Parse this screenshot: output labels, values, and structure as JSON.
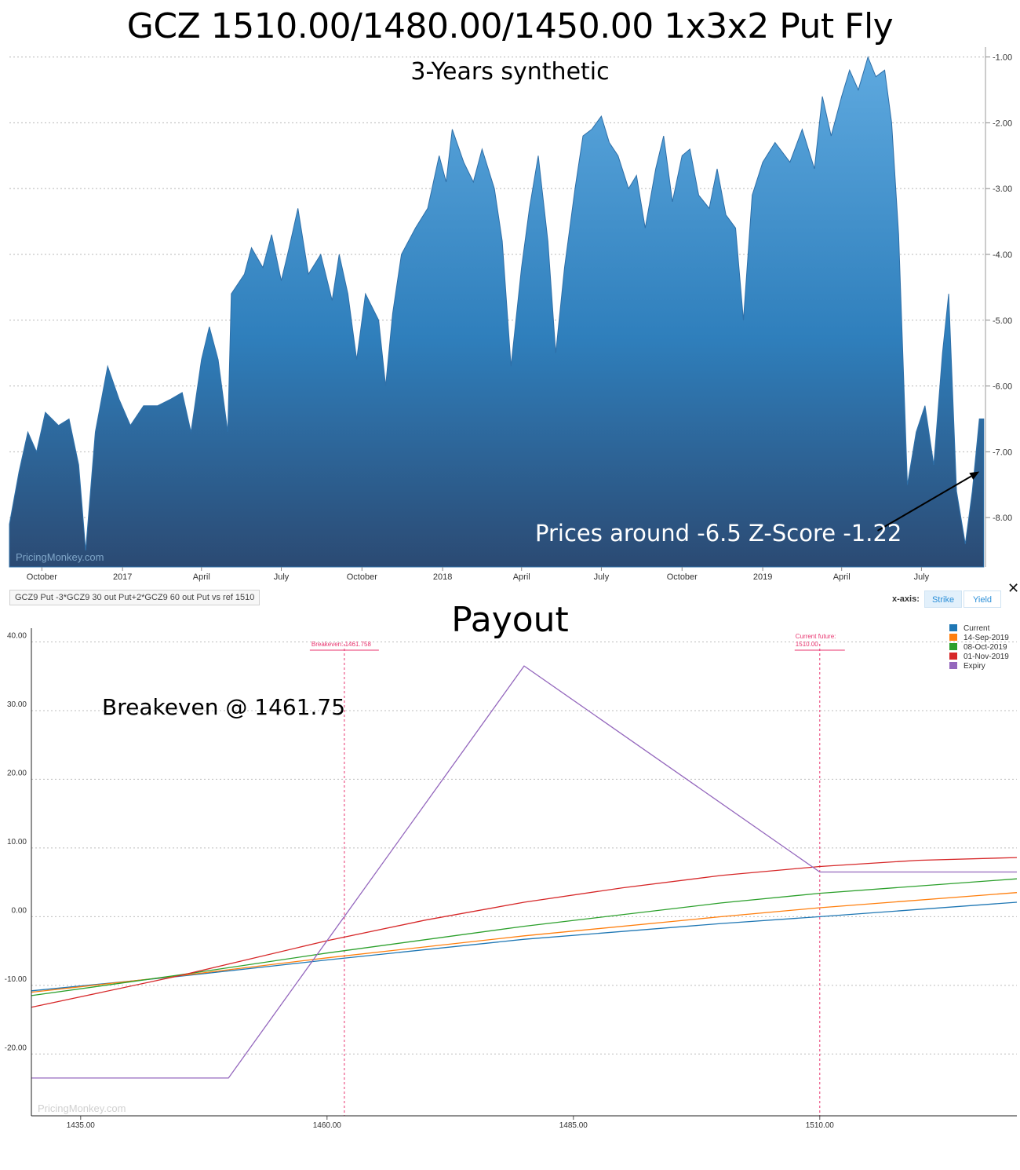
{
  "header": {
    "title": "GCZ 1510.00/1480.00/1450.00 1x3x2 Put Fly",
    "subtitle": "3-Years synthetic"
  },
  "annotations": {
    "zscore": "Prices around -6.5 Z-Score -1.22",
    "payout_title": "Payout",
    "breakeven": "Breakeven @ 1461.75"
  },
  "toolbar": {
    "strategy_label": "GCZ9 Put -3*GCZ9 30 out Put+2*GCZ9 60 out Put vs ref 1510",
    "xaxis_label": "x-axis:",
    "strike_label": "Strike",
    "yield_label": "Yield",
    "close_glyph": "✕"
  },
  "watermark": "PricingMonkey.com",
  "colors": {
    "area_top": "#5ea9df",
    "area_bottom": "#2b4a73",
    "current": "#1f77b4",
    "sep14": "#ff7f0e",
    "oct08": "#2ca02c",
    "nov01": "#d62728",
    "expiry": "#9467bd",
    "marker": "#e8336e"
  },
  "chart_data": [
    {
      "type": "area",
      "title": "GCZ 1510.00/1480.00/1450.00 1x3x2 Put Fly",
      "subtitle": "3-Years synthetic",
      "y_axis_side": "right",
      "ylim": [
        -8.75,
        -0.85
      ],
      "y_ticks": [
        "-1.00",
        "-2.00",
        "-3.00",
        "-4.00",
        "-5.00",
        "-6.00",
        "-7.00",
        "-8.00"
      ],
      "y_tick_values": [
        -1,
        -2,
        -3,
        -4,
        -5,
        -6,
        -7,
        -8
      ],
      "x_ticks": [
        "October",
        "2017",
        "April",
        "July",
        "October",
        "2018",
        "April",
        "July",
        "October",
        "2019",
        "April",
        "July"
      ],
      "x_tick_dates": [
        "2016-10-01",
        "2017-01-01",
        "2017-04-01",
        "2017-07-01",
        "2017-10-01",
        "2018-01-01",
        "2018-04-01",
        "2018-07-01",
        "2018-10-01",
        "2019-01-01",
        "2019-04-01",
        "2019-07-01"
      ],
      "xlim": [
        "2016-08-25",
        "2019-09-12"
      ],
      "grid": true,
      "series": [
        {
          "points": [
            [
              "2016-08-25",
              -8.1
            ],
            [
              "2016-09-05",
              -7.3
            ],
            [
              "2016-09-15",
              -6.7
            ],
            [
              "2016-09-25",
              -7.0
            ],
            [
              "2016-10-05",
              -6.4
            ],
            [
              "2016-10-20",
              -6.6
            ],
            [
              "2016-11-01",
              -6.5
            ],
            [
              "2016-11-12",
              -7.2
            ],
            [
              "2016-11-20",
              -8.5
            ],
            [
              "2016-12-01",
              -6.7
            ],
            [
              "2016-12-15",
              -5.7
            ],
            [
              "2016-12-28",
              -6.2
            ],
            [
              "2017-01-10",
              -6.6
            ],
            [
              "2017-01-25",
              -6.3
            ],
            [
              "2017-02-10",
              -6.3
            ],
            [
              "2017-02-25",
              -6.2
            ],
            [
              "2017-03-10",
              -6.1
            ],
            [
              "2017-03-20",
              -6.7
            ],
            [
              "2017-04-01",
              -5.6
            ],
            [
              "2017-04-10",
              -5.1
            ],
            [
              "2017-04-20",
              -5.6
            ],
            [
              "2017-05-01",
              -6.7
            ],
            [
              "2017-05-05",
              -4.6
            ],
            [
              "2017-05-20",
              -4.3
            ],
            [
              "2017-05-28",
              -3.9
            ],
            [
              "2017-06-10",
              -4.2
            ],
            [
              "2017-06-20",
              -3.7
            ],
            [
              "2017-07-01",
              -4.4
            ],
            [
              "2017-07-10",
              -3.9
            ],
            [
              "2017-07-20",
              -3.3
            ],
            [
              "2017-08-01",
              -4.3
            ],
            [
              "2017-08-15",
              -4.0
            ],
            [
              "2017-08-28",
              -4.7
            ],
            [
              "2017-09-05",
              -4.0
            ],
            [
              "2017-09-15",
              -4.6
            ],
            [
              "2017-09-25",
              -5.6
            ],
            [
              "2017-10-05",
              -4.6
            ],
            [
              "2017-10-20",
              -5.0
            ],
            [
              "2017-10-28",
              -6.0
            ],
            [
              "2017-11-05",
              -4.9
            ],
            [
              "2017-11-15",
              -4.0
            ],
            [
              "2017-12-01",
              -3.6
            ],
            [
              "2017-12-15",
              -3.3
            ],
            [
              "2017-12-28",
              -2.5
            ],
            [
              "2018-01-05",
              -2.9
            ],
            [
              "2018-01-12",
              -2.1
            ],
            [
              "2018-01-25",
              -2.6
            ],
            [
              "2018-02-05",
              -2.9
            ],
            [
              "2018-02-15",
              -2.4
            ],
            [
              "2018-03-01",
              -3.0
            ],
            [
              "2018-03-10",
              -3.8
            ],
            [
              "2018-03-20",
              -5.7
            ],
            [
              "2018-04-01",
              -4.2
            ],
            [
              "2018-04-10",
              -3.3
            ],
            [
              "2018-04-20",
              -2.5
            ],
            [
              "2018-05-01",
              -3.8
            ],
            [
              "2018-05-10",
              -5.5
            ],
            [
              "2018-05-20",
              -4.2
            ],
            [
              "2018-06-01",
              -3.0
            ],
            [
              "2018-06-10",
              -2.2
            ],
            [
              "2018-06-20",
              -2.1
            ],
            [
              "2018-07-01",
              -1.9
            ],
            [
              "2018-07-10",
              -2.3
            ],
            [
              "2018-07-20",
              -2.5
            ],
            [
              "2018-08-01",
              -3.0
            ],
            [
              "2018-08-10",
              -2.8
            ],
            [
              "2018-08-20",
              -3.6
            ],
            [
              "2018-09-01",
              -2.7
            ],
            [
              "2018-09-10",
              -2.2
            ],
            [
              "2018-09-20",
              -3.2
            ],
            [
              "2018-10-01",
              -2.5
            ],
            [
              "2018-10-10",
              -2.4
            ],
            [
              "2018-10-20",
              -3.1
            ],
            [
              "2018-11-01",
              -3.3
            ],
            [
              "2018-11-10",
              -2.7
            ],
            [
              "2018-11-20",
              -3.4
            ],
            [
              "2018-12-01",
              -3.6
            ],
            [
              "2018-12-10",
              -5.0
            ],
            [
              "2018-12-20",
              -3.1
            ],
            [
              "2019-01-01",
              -2.6
            ],
            [
              "2019-01-15",
              -2.3
            ],
            [
              "2019-02-01",
              -2.6
            ],
            [
              "2019-02-15",
              -2.1
            ],
            [
              "2019-03-01",
              -2.7
            ],
            [
              "2019-03-10",
              -1.6
            ],
            [
              "2019-03-20",
              -2.2
            ],
            [
              "2019-04-01",
              -1.6
            ],
            [
              "2019-04-10",
              -1.2
            ],
            [
              "2019-04-20",
              -1.5
            ],
            [
              "2019-05-01",
              -1.0
            ],
            [
              "2019-05-10",
              -1.3
            ],
            [
              "2019-05-20",
              -1.2
            ],
            [
              "2019-05-28",
              -2.0
            ],
            [
              "2019-06-05",
              -3.7
            ],
            [
              "2019-06-15",
              -7.5
            ],
            [
              "2019-06-25",
              -6.7
            ],
            [
              "2019-07-05",
              -6.3
            ],
            [
              "2019-07-15",
              -7.2
            ],
            [
              "2019-07-25",
              -5.5
            ],
            [
              "2019-08-01",
              -4.6
            ],
            [
              "2019-08-10",
              -7.6
            ],
            [
              "2019-08-20",
              -8.4
            ],
            [
              "2019-08-28",
              -7.6
            ],
            [
              "2019-09-05",
              -6.5
            ],
            [
              "2019-09-10",
              -6.5
            ]
          ]
        }
      ],
      "arrow_annotation": {
        "text": "Prices around -6.5 Z-Score -1.22",
        "to_date": "2019-09-05",
        "to_value": -7.3,
        "from_date": "2019-05-12",
        "from_value": -8.2
      }
    },
    {
      "type": "line",
      "title": "Payout",
      "xlim": [
        1430,
        1530
      ],
      "ylim": [
        -29,
        42
      ],
      "x_ticks": [
        "1435.00",
        "1460.00",
        "1485.00",
        "1510.00"
      ],
      "x_tick_values": [
        1435,
        1460,
        1485,
        1510
      ],
      "y_ticks": [
        "40.00",
        "30.00",
        "20.00",
        "10.00",
        "0.00",
        "-10.00",
        "-20.00"
      ],
      "y_tick_values": [
        40,
        30,
        20,
        10,
        0,
        -10,
        -20
      ],
      "grid": true,
      "legend_position": "top-right",
      "series": [
        {
          "name": "Current",
          "color": "#1f77b4",
          "x": [
            1430,
            1445,
            1460,
            1480,
            1500,
            1510,
            1530
          ],
          "values": [
            -10.8,
            -8.7,
            -6.3,
            -3.3,
            -1.0,
            0.0,
            2.1
          ]
        },
        {
          "name": "14-Sep-2019",
          "color": "#ff7f0e",
          "x": [
            1430,
            1445,
            1460,
            1480,
            1500,
            1510,
            1530
          ],
          "values": [
            -11.0,
            -8.6,
            -6.0,
            -2.8,
            0.0,
            1.3,
            3.5
          ]
        },
        {
          "name": "08-Oct-2019",
          "color": "#2ca02c",
          "x": [
            1430,
            1445,
            1460,
            1480,
            1500,
            1510,
            1530
          ],
          "values": [
            -11.5,
            -8.5,
            -5.3,
            -1.4,
            2.0,
            3.4,
            5.5
          ]
        },
        {
          "name": "01-Nov-2019",
          "color": "#d62728",
          "x": [
            1430,
            1445,
            1460,
            1470,
            1480,
            1490,
            1500,
            1510,
            1520,
            1530
          ],
          "values": [
            -13.2,
            -8.6,
            -3.5,
            -0.5,
            2.1,
            4.2,
            6.0,
            7.3,
            8.2,
            8.6
          ]
        },
        {
          "name": "Expiry",
          "color": "#9467bd",
          "x": [
            1430,
            1450,
            1480,
            1510,
            1530
          ],
          "values": [
            -23.5,
            -23.5,
            36.5,
            6.5,
            6.5
          ]
        }
      ],
      "markers": [
        {
          "label": "Breakeven: 1461.758",
          "x": 1461.758
        },
        {
          "label": "Current future: 1510.00",
          "x": 1510
        }
      ]
    }
  ]
}
